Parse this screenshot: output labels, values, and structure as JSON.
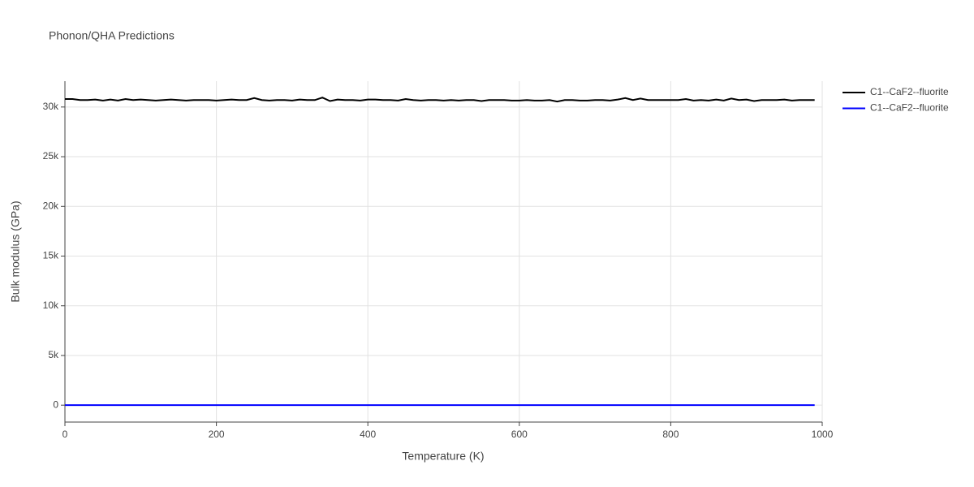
{
  "chart_data": {
    "type": "line",
    "title": "Phonon/QHA Predictions",
    "xlabel": "Temperature (K)",
    "ylabel": "Bulk modulus (GPa)",
    "x": [
      0,
      10,
      20,
      30,
      40,
      50,
      60,
      70,
      80,
      90,
      100,
      110,
      120,
      130,
      140,
      150,
      160,
      170,
      180,
      190,
      200,
      210,
      220,
      230,
      240,
      250,
      260,
      270,
      280,
      290,
      300,
      310,
      320,
      330,
      340,
      350,
      360,
      370,
      380,
      390,
      400,
      410,
      420,
      430,
      440,
      450,
      460,
      470,
      480,
      490,
      500,
      510,
      520,
      530,
      540,
      550,
      560,
      570,
      580,
      590,
      600,
      610,
      620,
      630,
      640,
      650,
      660,
      670,
      680,
      690,
      700,
      710,
      720,
      730,
      740,
      750,
      760,
      770,
      780,
      790,
      800,
      810,
      820,
      830,
      840,
      850,
      860,
      870,
      880,
      890,
      900,
      910,
      920,
      930,
      940,
      950,
      960,
      970,
      980,
      990
    ],
    "series": [
      {
        "name": "C1--CaF2--fluorite",
        "color": "#000000",
        "values": [
          30800,
          30800,
          30700,
          30700,
          30750,
          30650,
          30750,
          30650,
          30800,
          30700,
          30750,
          30700,
          30650,
          30700,
          30750,
          30700,
          30650,
          30700,
          30700,
          30700,
          30650,
          30700,
          30750,
          30700,
          30700,
          30900,
          30700,
          30650,
          30700,
          30700,
          30650,
          30750,
          30700,
          30700,
          30950,
          30600,
          30750,
          30700,
          30700,
          30650,
          30750,
          30750,
          30700,
          30700,
          30650,
          30800,
          30700,
          30650,
          30700,
          30700,
          30650,
          30700,
          30650,
          30700,
          30700,
          30600,
          30700,
          30700,
          30700,
          30650,
          30650,
          30700,
          30650,
          30650,
          30700,
          30550,
          30700,
          30700,
          30650,
          30650,
          30700,
          30700,
          30650,
          30750,
          30900,
          30700,
          30850,
          30700,
          30700,
          30700,
          30700,
          30700,
          30800,
          30650,
          30700,
          30650,
          30750,
          30650,
          30850,
          30700,
          30750,
          30600,
          30700,
          30700,
          30700,
          30750,
          30650,
          30700,
          30700,
          30700
        ]
      },
      {
        "name": "C1--CaF2--fluorite",
        "color": "#0000ff",
        "values": [
          0,
          0,
          0,
          0,
          0,
          0,
          0,
          0,
          0,
          0,
          0,
          0,
          0,
          0,
          0,
          0,
          0,
          0,
          0,
          0,
          0,
          0,
          0,
          0,
          0,
          0,
          0,
          0,
          0,
          0,
          0,
          0,
          0,
          0,
          0,
          0,
          0,
          0,
          0,
          0,
          0,
          0,
          0,
          0,
          0,
          0,
          0,
          0,
          0,
          0,
          0,
          0,
          0,
          0,
          0,
          0,
          0,
          0,
          0,
          0,
          0,
          0,
          0,
          0,
          0,
          0,
          0,
          0,
          0,
          0,
          0,
          0,
          0,
          0,
          0,
          0,
          0,
          0,
          0,
          0,
          0,
          0,
          0,
          0,
          0,
          0,
          0,
          0,
          0,
          0,
          0,
          0,
          0,
          0,
          0,
          0,
          0,
          0,
          0,
          0
        ]
      }
    ],
    "xlim": [
      0,
      1000
    ],
    "xticks": [
      0,
      200,
      400,
      600,
      800,
      1000
    ],
    "ylim": [
      -1700,
      32600
    ],
    "yticks": [
      0,
      {
        "value": 5000,
        "label": "5k"
      },
      {
        "value": 10000,
        "label": "10k"
      },
      {
        "value": 15000,
        "label": "15k"
      },
      {
        "value": 20000,
        "label": "20k"
      },
      {
        "value": 25000,
        "label": "25k"
      },
      {
        "value": 30000,
        "label": "30k"
      }
    ],
    "grid": true,
    "legend": "top-right"
  }
}
